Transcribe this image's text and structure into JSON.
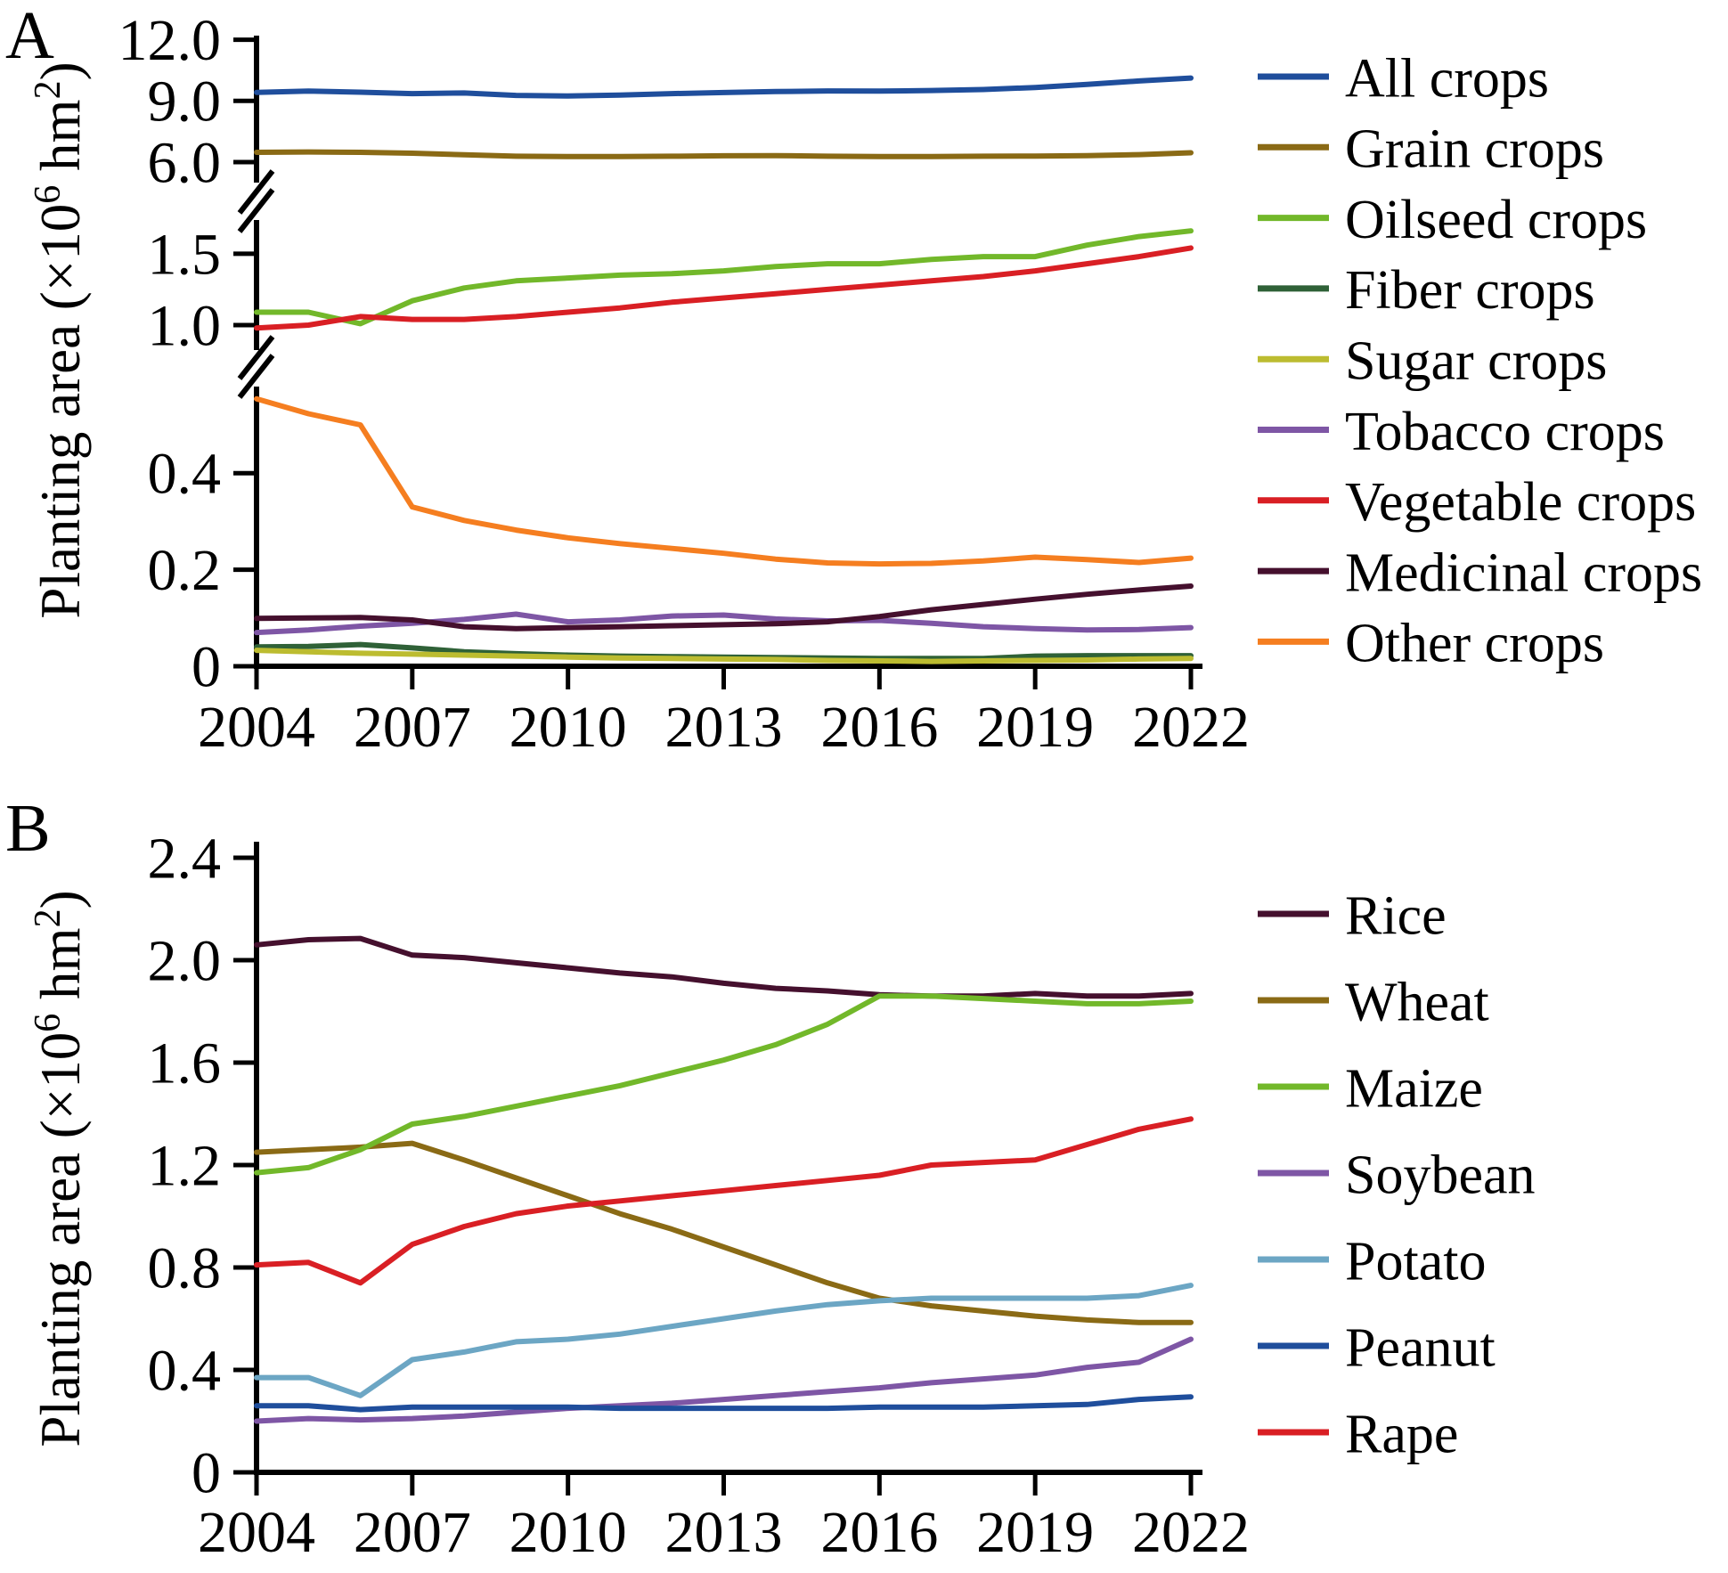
{
  "figure": {
    "background": "#ffffff",
    "axis_color": "#000000"
  },
  "chart_data": [
    {
      "type": "line",
      "panel": "A",
      "ylabel": "Planting area (×10^6 hm^2)",
      "ylabel_parts": [
        {
          "t": "Planting area (×10"
        },
        {
          "t": "6",
          "sup": true
        },
        {
          "t": " hm"
        },
        {
          "t": "2",
          "sup": true
        },
        {
          "t": ")"
        }
      ],
      "x": [
        2004,
        2005,
        2006,
        2007,
        2008,
        2009,
        2010,
        2011,
        2012,
        2013,
        2014,
        2015,
        2016,
        2017,
        2018,
        2019,
        2020,
        2021,
        2022
      ],
      "x_ticks": [
        {
          "label": "2004",
          "value": 2004
        },
        {
          "label": "2007",
          "value": 2007
        },
        {
          "label": "2010",
          "value": 2010
        },
        {
          "label": "2013",
          "value": 2013
        },
        {
          "label": "2016",
          "value": 2016
        },
        {
          "label": "2019",
          "value": 2019
        },
        {
          "label": "2022",
          "value": 2022
        }
      ],
      "y_ticks": [
        {
          "label": "12.0",
          "value": 12.0,
          "band": 0
        },
        {
          "label": "9.0",
          "value": 9.0,
          "band": 0
        },
        {
          "label": "6.0",
          "value": 6.0,
          "band": 0
        },
        {
          "label": "1.5",
          "value": 1.5,
          "band": 1
        },
        {
          "label": "1.0",
          "value": 1.0,
          "band": 1
        },
        {
          "label": "0.4",
          "value": 0.4,
          "band": 2
        },
        {
          "label": "0.2",
          "value": 0.2,
          "band": 2
        },
        {
          "label": "0",
          "value": 0,
          "band": 2
        }
      ],
      "y_axis_breaks": [
        [
          1.75,
          4.9
        ],
        [
          0.59,
          0.85
        ]
      ],
      "legend_position": "right",
      "series": [
        {
          "name": "All crops",
          "color": "#1f4e9c",
          "band": 0,
          "values": [
            9.42,
            9.48,
            9.43,
            9.36,
            9.39,
            9.27,
            9.24,
            9.29,
            9.36,
            9.41,
            9.46,
            9.49,
            9.48,
            9.51,
            9.56,
            9.66,
            9.81,
            9.98,
            10.12
          ]
        },
        {
          "name": "Grain crops",
          "color": "#8a6a15",
          "band": 0,
          "values": [
            6.48,
            6.5,
            6.48,
            6.44,
            6.36,
            6.29,
            6.27,
            6.27,
            6.29,
            6.31,
            6.32,
            6.29,
            6.27,
            6.27,
            6.29,
            6.3,
            6.32,
            6.37,
            6.46
          ]
        },
        {
          "name": "Oilseed crops",
          "color": "#72b82a",
          "band": 1,
          "values": [
            1.09,
            1.09,
            1.01,
            1.17,
            1.26,
            1.31,
            1.33,
            1.35,
            1.36,
            1.38,
            1.41,
            1.43,
            1.43,
            1.46,
            1.48,
            1.48,
            1.56,
            1.62,
            1.66
          ]
        },
        {
          "name": "Fiber crops",
          "color": "#2f6137",
          "band": 2,
          "values": [
            0.04,
            0.041,
            0.045,
            0.038,
            0.03,
            0.026,
            0.023,
            0.021,
            0.02,
            0.019,
            0.018,
            0.017,
            0.016,
            0.016,
            0.016,
            0.021,
            0.022,
            0.022,
            0.022
          ]
        },
        {
          "name": "Sugar crops",
          "color": "#bcbc30",
          "band": 2,
          "values": [
            0.033,
            0.03,
            0.027,
            0.025,
            0.023,
            0.021,
            0.019,
            0.017,
            0.016,
            0.015,
            0.014,
            0.012,
            0.011,
            0.01,
            0.011,
            0.012,
            0.013,
            0.015,
            0.016
          ]
        },
        {
          "name": "Tobacco crops",
          "color": "#7e56a5",
          "band": 2,
          "values": [
            0.07,
            0.075,
            0.083,
            0.089,
            0.097,
            0.108,
            0.092,
            0.096,
            0.104,
            0.106,
            0.098,
            0.094,
            0.095,
            0.089,
            0.082,
            0.078,
            0.075,
            0.076,
            0.08
          ]
        },
        {
          "name": "Vegetable crops",
          "color": "#d91f24",
          "band": 1,
          "values": [
            0.98,
            1.0,
            1.06,
            1.04,
            1.04,
            1.06,
            1.09,
            1.12,
            1.16,
            1.19,
            1.22,
            1.25,
            1.28,
            1.31,
            1.34,
            1.38,
            1.43,
            1.48,
            1.54
          ]
        },
        {
          "name": "Medicinal crops",
          "color": "#45102e",
          "band": 2,
          "values": [
            0.099,
            0.1,
            0.101,
            0.096,
            0.082,
            0.078,
            0.08,
            0.082,
            0.084,
            0.086,
            0.088,
            0.092,
            0.103,
            0.117,
            0.128,
            0.139,
            0.149,
            0.158,
            0.166
          ]
        },
        {
          "name": "Other crops",
          "color": "#f57e20",
          "band": 2,
          "values": [
            0.554,
            0.523,
            0.5,
            0.33,
            0.302,
            0.282,
            0.266,
            0.254,
            0.244,
            0.234,
            0.222,
            0.214,
            0.212,
            0.213,
            0.218,
            0.226,
            0.221,
            0.215,
            0.224
          ]
        }
      ]
    },
    {
      "type": "line",
      "panel": "B",
      "ylabel": "Planting area (×10^6 hm^2)",
      "ylabel_parts": [
        {
          "t": "Planting area (×10"
        },
        {
          "t": "6",
          "sup": true
        },
        {
          "t": " hm"
        },
        {
          "t": "2",
          "sup": true
        },
        {
          "t": ")"
        }
      ],
      "x": [
        2004,
        2005,
        2006,
        2007,
        2008,
        2009,
        2010,
        2011,
        2012,
        2013,
        2014,
        2015,
        2016,
        2017,
        2018,
        2019,
        2020,
        2021,
        2022
      ],
      "x_ticks": [
        {
          "label": "2004",
          "value": 2004
        },
        {
          "label": "2007",
          "value": 2007
        },
        {
          "label": "2010",
          "value": 2010
        },
        {
          "label": "2013",
          "value": 2013
        },
        {
          "label": "2016",
          "value": 2016
        },
        {
          "label": "2019",
          "value": 2019
        },
        {
          "label": "2022",
          "value": 2022
        }
      ],
      "y_ticks": [
        {
          "label": "2.4",
          "value": 2.4,
          "band": 0
        },
        {
          "label": "2.0",
          "value": 2.0,
          "band": 0
        },
        {
          "label": "1.6",
          "value": 1.6,
          "band": 0
        },
        {
          "label": "1.2",
          "value": 1.2,
          "band": 0
        },
        {
          "label": "0.8",
          "value": 0.8,
          "band": 0
        },
        {
          "label": "0.4",
          "value": 0.4,
          "band": 0
        },
        {
          "label": "0",
          "value": 0,
          "band": 0
        }
      ],
      "legend_position": "right",
      "series": [
        {
          "name": "Rice",
          "color": "#45102e",
          "band": 0,
          "values": [
            2.06,
            2.08,
            2.085,
            2.02,
            2.01,
            1.99,
            1.97,
            1.95,
            1.935,
            1.91,
            1.89,
            1.88,
            1.865,
            1.86,
            1.86,
            1.87,
            1.86,
            1.86,
            1.87
          ]
        },
        {
          "name": "Wheat",
          "color": "#8a6a15",
          "band": 0,
          "values": [
            1.25,
            1.26,
            1.27,
            1.285,
            1.22,
            1.15,
            1.08,
            1.01,
            0.95,
            0.88,
            0.81,
            0.74,
            0.68,
            0.65,
            0.63,
            0.61,
            0.595,
            0.585,
            0.585
          ]
        },
        {
          "name": "Maize",
          "color": "#72b82a",
          "band": 0,
          "values": [
            1.17,
            1.19,
            1.26,
            1.36,
            1.39,
            1.43,
            1.47,
            1.51,
            1.56,
            1.61,
            1.67,
            1.75,
            1.86,
            1.86,
            1.85,
            1.84,
            1.83,
            1.83,
            1.84
          ]
        },
        {
          "name": "Soybean",
          "color": "#7e56a5",
          "band": 0,
          "values": [
            0.2,
            0.21,
            0.205,
            0.21,
            0.22,
            0.235,
            0.25,
            0.26,
            0.27,
            0.285,
            0.3,
            0.315,
            0.33,
            0.35,
            0.365,
            0.38,
            0.41,
            0.43,
            0.52
          ]
        },
        {
          "name": "Potato",
          "color": "#6ca6c4",
          "band": 0,
          "values": [
            0.37,
            0.37,
            0.3,
            0.44,
            0.47,
            0.51,
            0.52,
            0.54,
            0.57,
            0.6,
            0.63,
            0.655,
            0.67,
            0.68,
            0.68,
            0.68,
            0.68,
            0.69,
            0.73
          ]
        },
        {
          "name": "Peanut",
          "color": "#1f4e9c",
          "band": 0,
          "values": [
            0.26,
            0.26,
            0.245,
            0.255,
            0.255,
            0.255,
            0.255,
            0.25,
            0.25,
            0.25,
            0.25,
            0.25,
            0.255,
            0.255,
            0.255,
            0.26,
            0.265,
            0.285,
            0.295
          ]
        },
        {
          "name": "Rape",
          "color": "#d91f24",
          "band": 0,
          "values": [
            0.81,
            0.82,
            0.74,
            0.89,
            0.96,
            1.01,
            1.04,
            1.06,
            1.08,
            1.1,
            1.12,
            1.14,
            1.16,
            1.2,
            1.21,
            1.22,
            1.28,
            1.34,
            1.38
          ]
        }
      ]
    }
  ]
}
